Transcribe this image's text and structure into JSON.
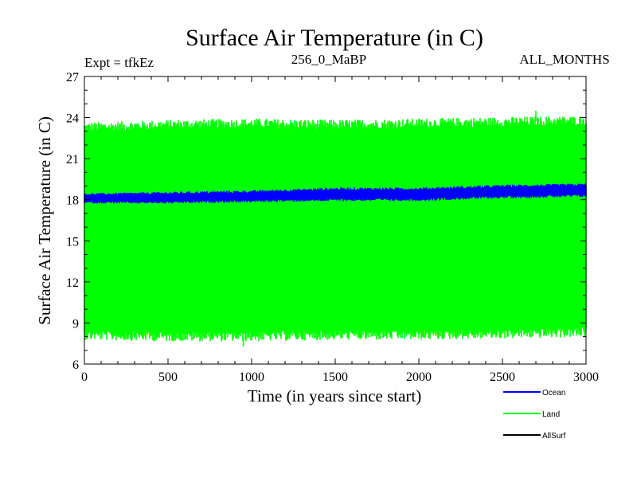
{
  "chart_data": {
    "type": "line",
    "title": "Surface Air Temperature (in C)",
    "annotations": {
      "left": "Expt = tfkEz",
      "center": "256_0_MaBP",
      "right": "ALL_MONTHS"
    },
    "xlabel": "Time (in years since start)",
    "ylabel": "Surface Air Temperature (in C)",
    "xlim": [
      0,
      3000
    ],
    "ylim": [
      6,
      27
    ],
    "xticks": [
      0,
      500,
      1000,
      1500,
      2000,
      2500,
      3000
    ],
    "yticks": [
      6,
      9,
      12,
      15,
      18,
      21,
      24,
      27
    ],
    "grid": false,
    "legend_position": "bottom-right",
    "series": [
      {
        "name": "Land",
        "color": "#00ff00",
        "style": "dense annual-cycle oscillation band",
        "x": [
          0,
          500,
          1000,
          1500,
          2000,
          2500,
          3000
        ],
        "upper": [
          23.3,
          23.5,
          23.6,
          23.5,
          23.6,
          23.7,
          23.8
        ],
        "lower": [
          8.1,
          8.0,
          8.0,
          8.1,
          8.1,
          8.2,
          8.3
        ],
        "max_peak": [
          2700,
          24.5
        ],
        "min_trough": [
          950,
          7.3
        ]
      },
      {
        "name": "Ocean",
        "color": "#0000ff",
        "style": "narrow oscillation band",
        "x": [
          0,
          500,
          1000,
          1500,
          2000,
          2500,
          3000
        ],
        "upper": [
          18.4,
          18.5,
          18.6,
          18.8,
          18.8,
          19.0,
          19.1
        ],
        "lower": [
          17.8,
          17.8,
          17.9,
          18.0,
          18.0,
          18.2,
          18.3
        ]
      },
      {
        "name": "AllSurf",
        "color": "#000000",
        "style": "not visible (hidden beneath bands)",
        "x": [],
        "upper": [],
        "lower": []
      }
    ]
  },
  "legend": [
    {
      "label": "Ocean",
      "color": "#0000ff"
    },
    {
      "label": "Land",
      "color": "#00ff00"
    },
    {
      "label": "AllSurf",
      "color": "#000000"
    }
  ]
}
